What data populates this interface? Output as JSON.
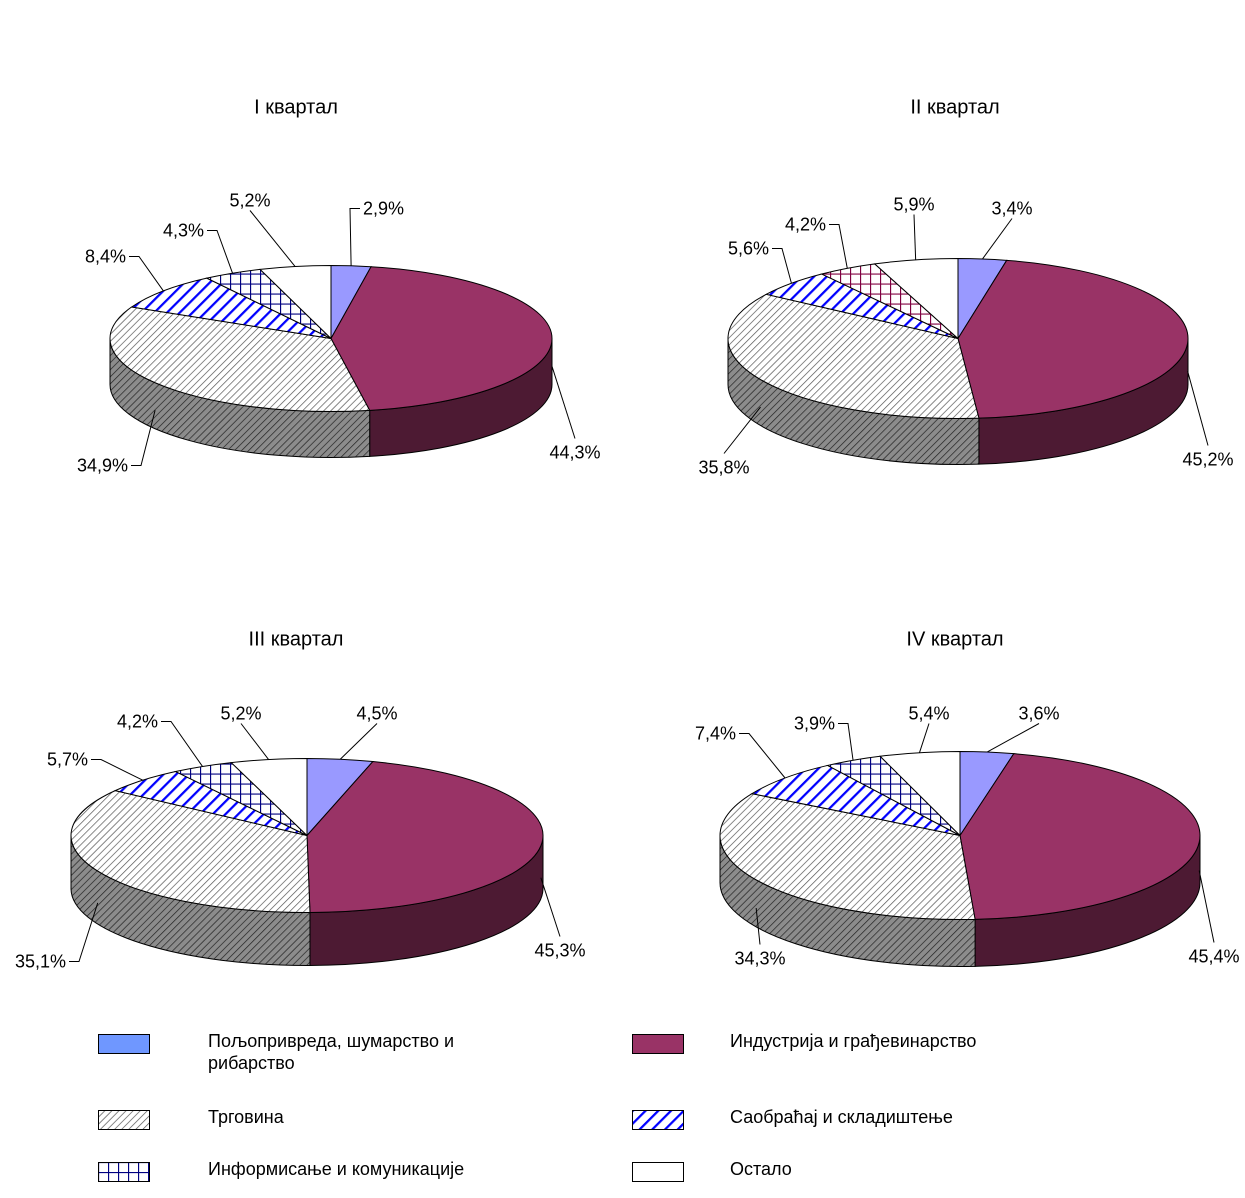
{
  "legend": [
    {
      "key": "agri",
      "label": "Пољопривреда, шумарство и рибарство"
    },
    {
      "key": "industry",
      "label": "Индустрија и грађевинарство"
    },
    {
      "key": "trade",
      "label": "Трговина"
    },
    {
      "key": "transport",
      "label": "Саобраћај и складиштење"
    },
    {
      "key": "info",
      "label": "Информисање и комуникације"
    },
    {
      "key": "other",
      "label": "Остало"
    }
  ],
  "colors": {
    "agri": "#9999ff",
    "industry": "#993366",
    "industry_side": "#4d1a33",
    "trade_side": "#808080",
    "transport": "#0000ff",
    "info": "#000080",
    "info_q2": "#800040"
  },
  "chart_data": [
    {
      "type": "pie",
      "title": "I квартал",
      "categories": [
        "agri",
        "industry",
        "trade",
        "transport",
        "info",
        "other"
      ],
      "values": [
        2.9,
        44.3,
        34.9,
        8.4,
        4.3,
        5.2
      ],
      "labels": [
        "2,9%",
        "44,3%",
        "34,9%",
        "8,4%",
        "4,3%",
        "5,2%"
      ]
    },
    {
      "type": "pie",
      "title": "II квартал",
      "categories": [
        "agri",
        "industry",
        "trade",
        "transport",
        "info",
        "other"
      ],
      "values": [
        3.4,
        45.2,
        35.8,
        5.6,
        4.2,
        5.9
      ],
      "labels": [
        "3,4%",
        "45,2%",
        "35,8%",
        "5,6%",
        "4,2%",
        "5,9%"
      ]
    },
    {
      "type": "pie",
      "title": "III квартал",
      "categories": [
        "agri",
        "industry",
        "trade",
        "transport",
        "info",
        "other"
      ],
      "values": [
        4.5,
        45.3,
        35.1,
        5.7,
        4.2,
        5.2
      ],
      "labels": [
        "4,5%",
        "45,3%",
        "35,1%",
        "5,7%",
        "4,2%",
        "5,2%"
      ]
    },
    {
      "type": "pie",
      "title": "IV квартал",
      "categories": [
        "agri",
        "industry",
        "trade",
        "transport",
        "info",
        "other"
      ],
      "values": [
        3.6,
        45.4,
        34.3,
        7.4,
        3.9,
        5.4
      ],
      "labels": [
        "3,6%",
        "45,4%",
        "34,3%",
        "7,4%",
        "3,9%",
        "5,4%"
      ]
    }
  ]
}
